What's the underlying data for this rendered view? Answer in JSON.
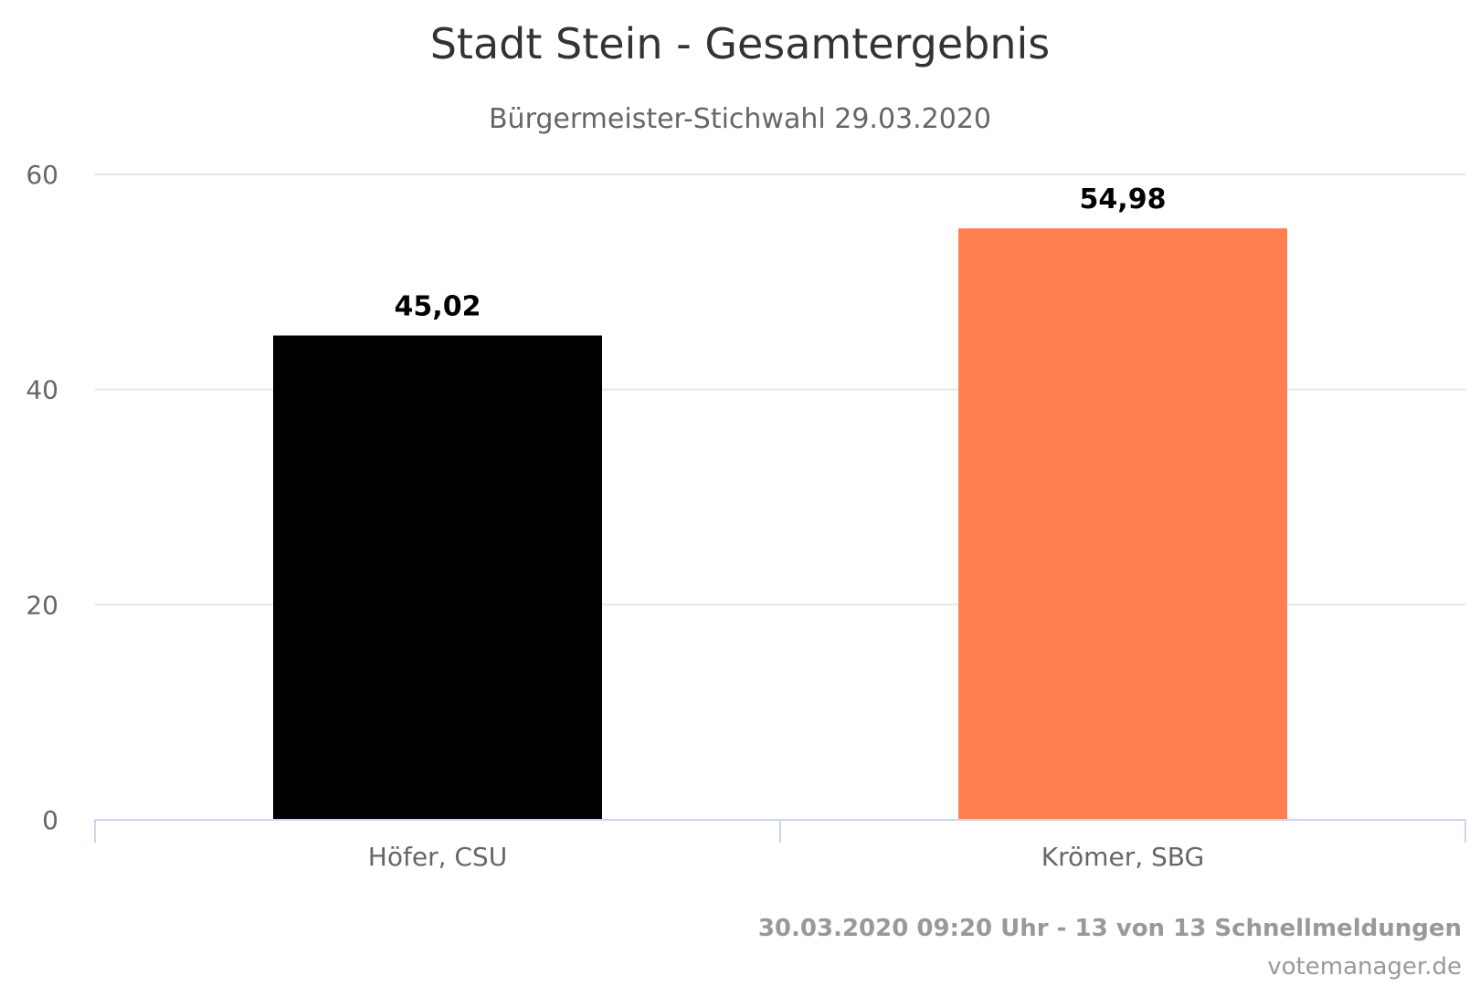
{
  "chart_data": {
    "type": "bar",
    "title": "Stadt Stein - Gesamtergebnis",
    "subtitle": "Bürgermeister-Stichwahl 29.03.2020",
    "categories": [
      "Höfer, CSU",
      "Krömer, SBG"
    ],
    "values": [
      45.02,
      54.98
    ],
    "value_labels": [
      "45,02",
      "54,98"
    ],
    "colors": [
      "#000000",
      "#ff7f50"
    ],
    "ylim": [
      0,
      60
    ],
    "yticks": [
      0,
      20,
      40,
      60
    ],
    "grid": true,
    "legend": "none",
    "xlabel": "",
    "ylabel": ""
  },
  "footer": {
    "status": "30.03.2020 09:20 Uhr - 13 von 13 Schnellmeldungen",
    "credit": "votemanager.de"
  },
  "colors": {
    "title": "#333333",
    "subtitle": "#666666",
    "axis_text": "#666666",
    "grid": "#e6e6e6",
    "axis_line": "#ccd6eb",
    "footer_text": "#999999"
  }
}
